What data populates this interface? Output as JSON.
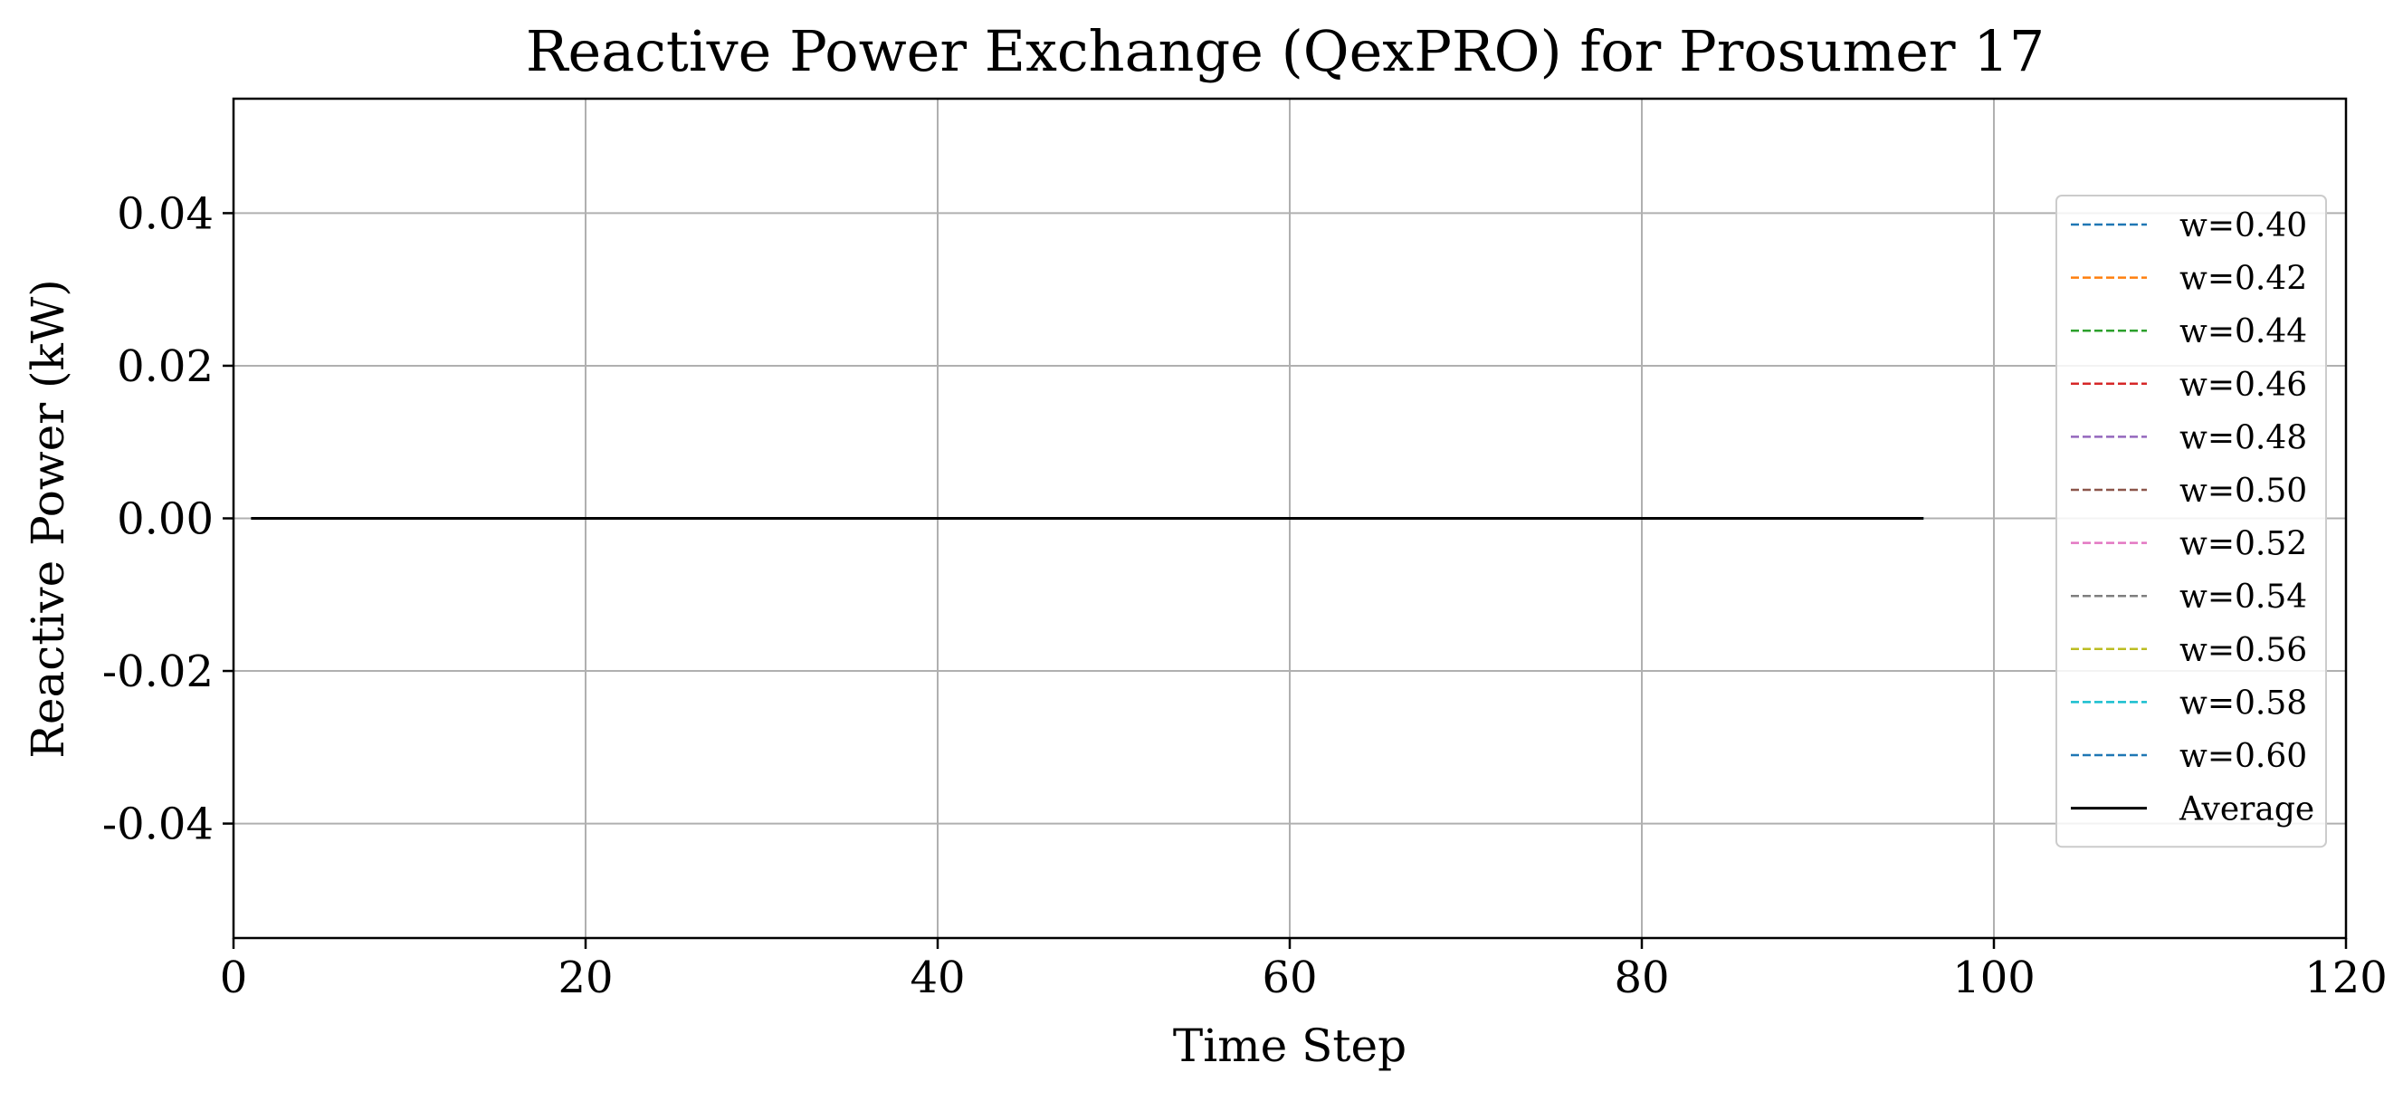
{
  "chart_data": {
    "type": "line",
    "title": "Reactive Power Exchange (QexPRO) for Prosumer 17",
    "xlabel": "Time Step",
    "ylabel": "Reactive Power (kW)",
    "xlim": [
      0,
      120
    ],
    "ylim": [
      -0.055,
      0.055
    ],
    "xticks": [
      0,
      20,
      40,
      60,
      80,
      100,
      120
    ],
    "xtick_labels": [
      "0",
      "20",
      "40",
      "60",
      "80",
      "100",
      "120"
    ],
    "yticks": [
      0.04,
      0.02,
      0.0,
      -0.02,
      -0.04
    ],
    "ytick_labels": [
      "0.04",
      "0.02",
      "0.00",
      "-0.02",
      "-0.04"
    ],
    "grid": true,
    "legend_position": "right",
    "x": {
      "start": 1,
      "end": 96,
      "step": 1
    },
    "series": [
      {
        "name": "w=0.40",
        "color": "#1f77b4",
        "dash": "dashed",
        "constant_value": 0.0
      },
      {
        "name": "w=0.42",
        "color": "#ff7f0e",
        "dash": "dashed",
        "constant_value": 0.0
      },
      {
        "name": "w=0.44",
        "color": "#2ca02c",
        "dash": "dashed",
        "constant_value": 0.0
      },
      {
        "name": "w=0.46",
        "color": "#d62728",
        "dash": "dashed",
        "constant_value": 0.0
      },
      {
        "name": "w=0.48",
        "color": "#9467bd",
        "dash": "dashed",
        "constant_value": 0.0
      },
      {
        "name": "w=0.50",
        "color": "#8c564b",
        "dash": "dashed",
        "constant_value": 0.0
      },
      {
        "name": "w=0.52",
        "color": "#e377c2",
        "dash": "dashed",
        "constant_value": 0.0
      },
      {
        "name": "w=0.54",
        "color": "#7f7f7f",
        "dash": "dashed",
        "constant_value": 0.0
      },
      {
        "name": "w=0.56",
        "color": "#bcbd22",
        "dash": "dashed",
        "constant_value": 0.0
      },
      {
        "name": "w=0.58",
        "color": "#17becf",
        "dash": "dashed",
        "constant_value": 0.0
      },
      {
        "name": "w=0.60",
        "color": "#1f77b4",
        "dash": "dashed",
        "constant_value": 0.0
      },
      {
        "name": "Average",
        "color": "#000000",
        "dash": "solid",
        "constant_value": 0.0
      }
    ]
  }
}
